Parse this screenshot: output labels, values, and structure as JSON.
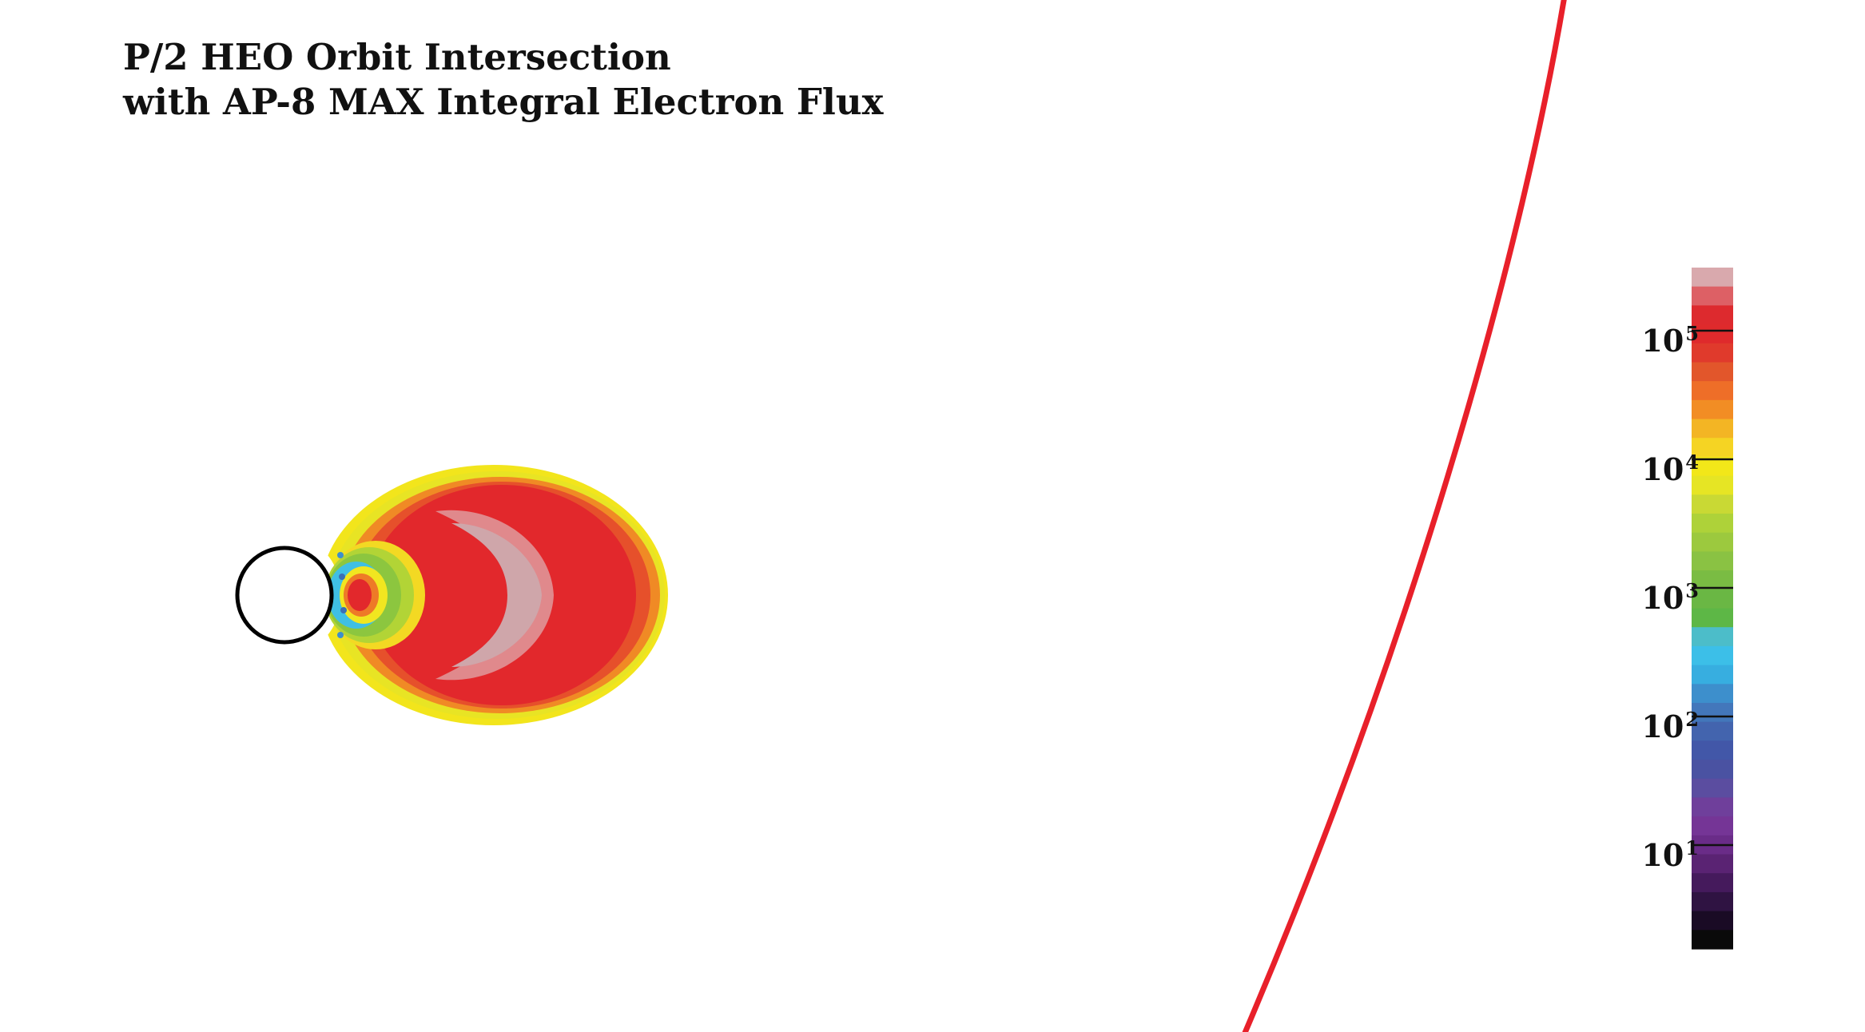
{
  "title": {
    "line1": "P/2 HEO Orbit Intersection",
    "line2": "with AP-8 MAX Integral Electron Flux"
  },
  "colorbar": {
    "ticks": [
      {
        "base": "10",
        "exp": "5",
        "value": 100000
      },
      {
        "base": "10",
        "exp": "4",
        "value": 10000
      },
      {
        "base": "10",
        "exp": "3",
        "value": 1000
      },
      {
        "base": "10",
        "exp": "2",
        "value": 100
      },
      {
        "base": "10",
        "exp": "1",
        "value": 10
      }
    ],
    "scale": "log",
    "colors_top_to_bottom": [
      "#d9a9ad",
      "#dd6065",
      "#dd2a2e",
      "#df2a2c",
      "#e03a2c",
      "#e2562b",
      "#ee6e28",
      "#f28d24",
      "#f3b524",
      "#f5d423",
      "#f2e719",
      "#e6e524",
      "#c9d934",
      "#aed239",
      "#9cc93e",
      "#8ac243",
      "#7abc43",
      "#6ab744",
      "#5db746",
      "#4cbdc9",
      "#3cbfe8",
      "#37aee0",
      "#3d8fcc",
      "#4377bb",
      "#4364ae",
      "#4257a8",
      "#4a52a2",
      "#5b4da0",
      "#6f3f9b",
      "#753596",
      "#6a2c88",
      "#5a2373",
      "#451a5c",
      "#2f1342",
      "#1a0b25",
      "#0a0a0a"
    ]
  },
  "diagram": {
    "earth_color": "#000000",
    "orbit_color": "#e8202a",
    "belt_colors": {
      "outer_edge": "#f2e51c",
      "orange": "#ec6f28",
      "core": "#e2282c",
      "peak": "#cca3a8",
      "slot_green": "#8cc63f",
      "slot_cyan": "#3fbfe4",
      "slot_blue": "#3b6fb5"
    }
  }
}
